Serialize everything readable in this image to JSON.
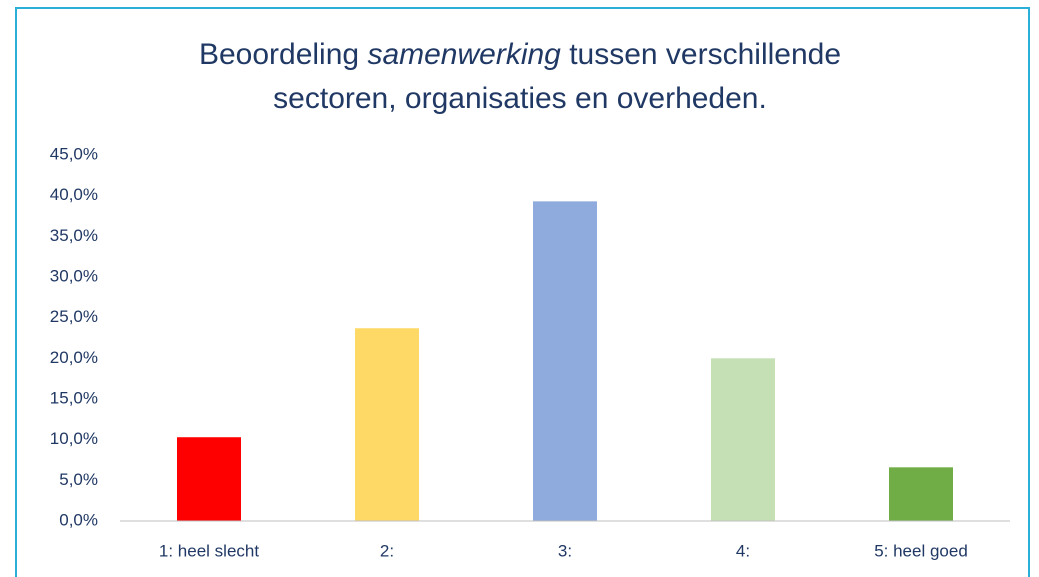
{
  "chart_data": {
    "type": "bar",
    "title_lines": [
      [
        {
          "text": "Beoordeling "
        },
        {
          "text": "samenwerking",
          "italic": true
        },
        {
          "text": " tussen verschillende"
        }
      ],
      [
        {
          "text": "sectoren, organisaties en overheden."
        }
      ]
    ],
    "categories": [
      "1: heel slecht",
      "2:",
      "3:",
      "4:",
      "5: heel goed"
    ],
    "values": [
      10.3,
      23.7,
      39.3,
      20.0,
      6.6
    ],
    "colors": [
      "#ff0000",
      "#ffd966",
      "#8faadc",
      "#c5e0b4",
      "#70ad47"
    ],
    "ylim": [
      0,
      45
    ],
    "yticks": [
      {
        "value": 0,
        "label": "0,0%"
      },
      {
        "value": 5,
        "label": "5,0%"
      },
      {
        "value": 10,
        "label": "10,0%"
      },
      {
        "value": 15,
        "label": "15,0%"
      },
      {
        "value": 20,
        "label": "20,0%"
      },
      {
        "value": 25,
        "label": "25,0%"
      },
      {
        "value": 30,
        "label": "30,0%"
      },
      {
        "value": 35,
        "label": "35,0%"
      },
      {
        "value": 40,
        "label": "40,0%"
      },
      {
        "value": 45,
        "label": "45,0%"
      }
    ],
    "grid": false
  }
}
